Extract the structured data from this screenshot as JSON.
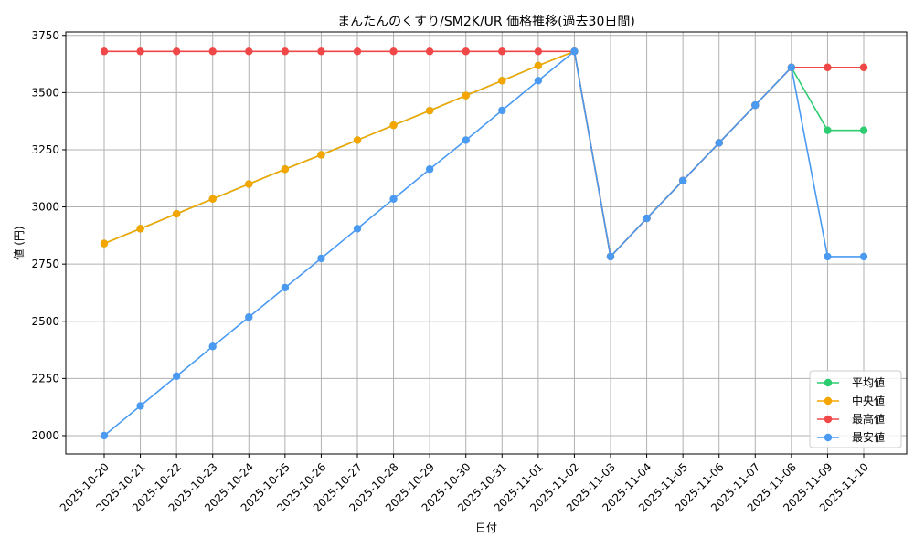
{
  "chart_data": {
    "type": "line",
    "title": "まんたんのくすり/SM2K/UR 価格推移(過去30日間)",
    "xlabel": "日付",
    "ylabel": "値 (円)",
    "ylim": [
      1920,
      3765
    ],
    "yticks": [
      2000,
      2250,
      2500,
      2750,
      3000,
      3250,
      3500,
      3750
    ],
    "grid": true,
    "legend_position": "lower-right",
    "categories": [
      "2025-10-20",
      "2025-10-21",
      "2025-10-22",
      "2025-10-23",
      "2025-10-24",
      "2025-10-25",
      "2025-10-26",
      "2025-10-27",
      "2025-10-28",
      "2025-10-29",
      "2025-10-30",
      "2025-10-31",
      "2025-11-01",
      "2025-11-02",
      "2025-11-03",
      "2025-11-04",
      "2025-11-05",
      "2025-11-06",
      "2025-11-07",
      "2025-11-08",
      "2025-11-09",
      "2025-11-10"
    ],
    "series": [
      {
        "name": "平均値",
        "color": "#2ecc71",
        "values": [
          2840,
          2905,
          2970,
          3035,
          3100,
          3165,
          3228,
          3292,
          3357,
          3421,
          3487,
          3552,
          3618,
          3680,
          2783,
          2950,
          3115,
          3280,
          3445,
          3610,
          3335,
          3335
        ]
      },
      {
        "name": "中央値",
        "color": "#f5a500",
        "values": [
          2840,
          2905,
          2970,
          3035,
          3100,
          3165,
          3228,
          3292,
          3357,
          3421,
          3487,
          3552,
          3618,
          3680,
          2783,
          2950,
          3115,
          3280,
          3445,
          3610,
          3610,
          3610
        ]
      },
      {
        "name": "最高値",
        "color": "#f04848",
        "values": [
          3680,
          3680,
          3680,
          3680,
          3680,
          3680,
          3680,
          3680,
          3680,
          3680,
          3680,
          3680,
          3680,
          3680,
          2783,
          2950,
          3115,
          3280,
          3445,
          3610,
          3610,
          3610
        ]
      },
      {
        "name": "最安値",
        "color": "#4a9af2",
        "values": [
          2000,
          2130,
          2260,
          2390,
          2518,
          2647,
          2775,
          2905,
          3035,
          3165,
          3292,
          3422,
          3552,
          3680,
          2783,
          2950,
          3115,
          3280,
          3445,
          3610,
          2783,
          2783
        ]
      }
    ]
  }
}
